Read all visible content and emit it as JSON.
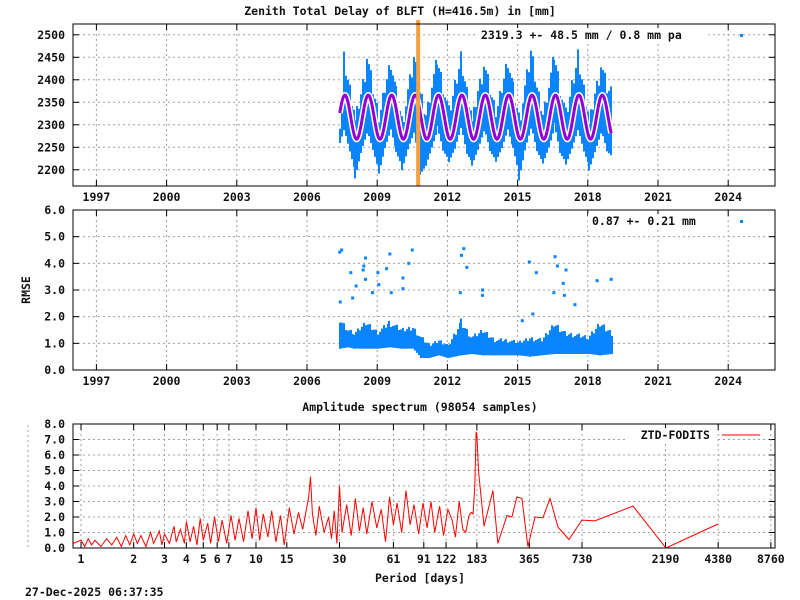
{
  "timestamp": "27-Dec-2025 06:37:35",
  "chart_data": [
    {
      "type": "scatter",
      "title": "Zenith Total Delay of BLFT (H=416.5m) in [mm]",
      "xlabel": "",
      "ylabel": "",
      "xlim": [
        1996,
        2026
      ],
      "ylim": [
        2164,
        2524
      ],
      "xticks": [
        1997,
        2000,
        2003,
        2006,
        2009,
        2012,
        2015,
        2018,
        2021,
        2024
      ],
      "yticks": [
        2200,
        2250,
        2300,
        2350,
        2400,
        2450,
        2500
      ],
      "grid": true,
      "legend": {
        "text": "2319.3 +-  48.5 mm /  0.8 mm pa",
        "placement": "top-right"
      },
      "colors": {
        "data": "#0a84ff",
        "fit": "#9400d3",
        "marker_line": "#f5a040"
      },
      "event_line_year": 2010.75,
      "data_envelope": [
        [
          2007.4,
          2265,
          2330
        ],
        [
          2007.55,
          2290,
          2470
        ],
        [
          2007.8,
          2240,
          2400
        ],
        [
          2008.05,
          2190,
          2340
        ],
        [
          2008.3,
          2245,
          2400
        ],
        [
          2008.55,
          2285,
          2470
        ],
        [
          2008.8,
          2240,
          2390
        ],
        [
          2009.05,
          2195,
          2330
        ],
        [
          2009.3,
          2250,
          2410
        ],
        [
          2009.55,
          2290,
          2465
        ],
        [
          2009.8,
          2235,
          2385
        ],
        [
          2010.05,
          2205,
          2320
        ],
        [
          2010.3,
          2250,
          2400
        ],
        [
          2010.55,
          2285,
          2465
        ],
        [
          2010.8,
          2190,
          2395
        ],
        [
          2011.05,
          2210,
          2340
        ],
        [
          2011.3,
          2250,
          2410
        ],
        [
          2011.55,
          2290,
          2465
        ],
        [
          2011.8,
          2240,
          2400
        ],
        [
          2012.05,
          2220,
          2340
        ],
        [
          2012.3,
          2250,
          2410
        ],
        [
          2012.55,
          2295,
          2470
        ],
        [
          2012.8,
          2235,
          2395
        ],
        [
          2013.05,
          2215,
          2335
        ],
        [
          2013.3,
          2250,
          2405
        ],
        [
          2013.55,
          2290,
          2450
        ],
        [
          2013.8,
          2240,
          2390
        ],
        [
          2014.05,
          2220,
          2340
        ],
        [
          2014.3,
          2250,
          2410
        ],
        [
          2014.55,
          2290,
          2470
        ],
        [
          2014.8,
          2240,
          2395
        ],
        [
          2015.05,
          2185,
          2330
        ],
        [
          2015.3,
          2250,
          2410
        ],
        [
          2015.55,
          2295,
          2480
        ],
        [
          2015.8,
          2240,
          2400
        ],
        [
          2016.05,
          2215,
          2340
        ],
        [
          2016.3,
          2250,
          2410
        ],
        [
          2016.55,
          2295,
          2475
        ],
        [
          2016.8,
          2235,
          2395
        ],
        [
          2017.05,
          2215,
          2335
        ],
        [
          2017.3,
          2250,
          2410
        ],
        [
          2017.55,
          2290,
          2475
        ],
        [
          2017.8,
          2240,
          2400
        ],
        [
          2018.05,
          2205,
          2330
        ],
        [
          2018.3,
          2245,
          2400
        ],
        [
          2018.55,
          2285,
          2450
        ],
        [
          2018.8,
          2240,
          2395
        ],
        [
          2019.0,
          2230,
          2390
        ]
      ],
      "fit": {
        "mean": 2317,
        "amplitude": 49,
        "peak_year_fraction": 0.62,
        "start": 2007.4,
        "end": 2019.0
      }
    },
    {
      "type": "scatter",
      "title": "",
      "xlabel": "",
      "ylabel": "RMSE",
      "xlim": [
        1996,
        2026
      ],
      "ylim": [
        0,
        6
      ],
      "xticks": [
        1997,
        2000,
        2003,
        2006,
        2009,
        2012,
        2015,
        2018,
        2021,
        2024
      ],
      "yticks": [
        "0.0",
        "1.0",
        "2.0",
        "3.0",
        "4.0",
        "5.0",
        "6.0"
      ],
      "grid": true,
      "legend": {
        "text": "0.87 +-  0.21 mm",
        "placement": "top-right"
      },
      "colors": {
        "data": "#0a84ff"
      },
      "data_envelope": [
        [
          2007.4,
          0.8,
          2.0
        ],
        [
          2007.7,
          0.85,
          1.6
        ],
        [
          2008.0,
          0.8,
          1.45
        ],
        [
          2008.5,
          0.8,
          1.9
        ],
        [
          2009.0,
          0.8,
          1.5
        ],
        [
          2009.5,
          0.85,
          1.9
        ],
        [
          2010.0,
          0.8,
          1.6
        ],
        [
          2010.5,
          0.8,
          1.7
        ],
        [
          2010.85,
          0.45,
          1.3
        ],
        [
          2011.2,
          0.45,
          1.0
        ],
        [
          2011.6,
          0.55,
          1.2
        ],
        [
          2012.0,
          0.45,
          1.0
        ],
        [
          2012.55,
          0.55,
          2.0
        ],
        [
          2013.0,
          0.6,
          1.3
        ],
        [
          2013.5,
          0.55,
          1.6
        ],
        [
          2014.0,
          0.55,
          1.2
        ],
        [
          2014.5,
          0.55,
          1.2
        ],
        [
          2015.0,
          0.55,
          1.1
        ],
        [
          2015.5,
          0.5,
          1.3
        ],
        [
          2016.0,
          0.55,
          1.2
        ],
        [
          2016.55,
          0.6,
          1.9
        ],
        [
          2017.0,
          0.6,
          1.5
        ],
        [
          2017.5,
          0.6,
          1.4
        ],
        [
          2018.0,
          0.6,
          1.3
        ],
        [
          2018.5,
          0.55,
          1.9
        ],
        [
          2019.0,
          0.6,
          1.5
        ]
      ],
      "outliers": [
        [
          2007.4,
          4.42
        ],
        [
          2007.48,
          4.5
        ],
        [
          2008.5,
          4.2
        ],
        [
          2008.43,
          3.9
        ],
        [
          2008.4,
          3.75
        ],
        [
          2007.87,
          3.65
        ],
        [
          2009.54,
          4.35
        ],
        [
          2009.4,
          3.8
        ],
        [
          2010.35,
          4.0
        ],
        [
          2010.5,
          4.5
        ],
        [
          2010.1,
          3.45
        ],
        [
          2008.8,
          2.9
        ],
        [
          2008.1,
          3.15
        ],
        [
          2012.6,
          4.3
        ],
        [
          2012.7,
          4.55
        ],
        [
          2012.83,
          3.85
        ],
        [
          2012.55,
          2.9
        ],
        [
          2013.5,
          2.8
        ],
        [
          2015.5,
          4.05
        ],
        [
          2015.8,
          3.65
        ],
        [
          2016.6,
          4.25
        ],
        [
          2016.7,
          3.9
        ],
        [
          2017.07,
          3.75
        ],
        [
          2016.95,
          3.25
        ],
        [
          2016.55,
          2.9
        ],
        [
          2017.0,
          2.8
        ],
        [
          2018.4,
          3.35
        ],
        [
          2019.0,
          3.4
        ],
        [
          2008.5,
          3.4
        ],
        [
          2009.07,
          3.2
        ],
        [
          2007.42,
          2.55
        ],
        [
          2007.95,
          2.7
        ],
        [
          2009.03,
          3.65
        ],
        [
          2010.1,
          3.05
        ],
        [
          2009.6,
          2.9
        ],
        [
          2017.45,
          2.45
        ],
        [
          2015.65,
          2.1
        ],
        [
          2015.2,
          1.85
        ],
        [
          2013.5,
          3.0
        ]
      ]
    },
    {
      "type": "line",
      "title": "Amplitude spectrum (98054 samples)",
      "xlabel": "Period [days]",
      "ylabel": "",
      "xscale": "log",
      "xlim": [
        0.9,
        9250
      ],
      "ylim": [
        0,
        8
      ],
      "xticks": [
        1,
        2,
        3,
        4,
        5,
        6,
        7,
        10,
        15,
        30,
        61,
        91,
        122,
        183,
        365,
        730,
        2190,
        4380,
        8760
      ],
      "yticks": [
        "0.0",
        "1.0",
        "2.0",
        "3.0",
        "4.0",
        "5.0",
        "6.0",
        "7.0",
        "8.0"
      ],
      "grid": true,
      "legend": {
        "text": "ZTD-FODITS",
        "placement": "top-right"
      },
      "series": [
        {
          "name": "ZTD-FODITS",
          "color": "#ff0000",
          "points": [
            [
              0.9,
              0.3
            ],
            [
              1,
              0.5
            ],
            [
              1.05,
              0.1
            ],
            [
              1.1,
              0.6
            ],
            [
              1.15,
              0.2
            ],
            [
              1.2,
              0.5
            ],
            [
              1.3,
              0.1
            ],
            [
              1.4,
              0.6
            ],
            [
              1.5,
              0.2
            ],
            [
              1.6,
              0.7
            ],
            [
              1.7,
              0.1
            ],
            [
              1.8,
              0.8
            ],
            [
              1.9,
              0.2
            ],
            [
              2.0,
              0.9
            ],
            [
              2.1,
              0.3
            ],
            [
              2.2,
              0.8
            ],
            [
              2.35,
              0.1
            ],
            [
              2.5,
              1.0
            ],
            [
              2.6,
              0.3
            ],
            [
              2.8,
              1.1
            ],
            [
              2.9,
              0.2
            ],
            [
              3.0,
              0.9
            ],
            [
              3.2,
              0.3
            ],
            [
              3.4,
              1.4
            ],
            [
              3.5,
              0.4
            ],
            [
              3.7,
              1.2
            ],
            [
              3.9,
              0.3
            ],
            [
              4.0,
              1.7
            ],
            [
              4.2,
              0.4
            ],
            [
              4.4,
              1.4
            ],
            [
              4.6,
              0.2
            ],
            [
              4.8,
              1.9
            ],
            [
              5.0,
              0.5
            ],
            [
              5.3,
              1.6
            ],
            [
              5.5,
              0.3
            ],
            [
              5.8,
              2.0
            ],
            [
              6.1,
              0.4
            ],
            [
              6.4,
              1.8
            ],
            [
              6.8,
              0.3
            ],
            [
              7.2,
              2.1
            ],
            [
              7.6,
              0.5
            ],
            [
              8.0,
              1.9
            ],
            [
              8.5,
              0.4
            ],
            [
              9.0,
              2.4
            ],
            [
              9.5,
              0.6
            ],
            [
              10,
              2.6
            ],
            [
              10.5,
              0.5
            ],
            [
              11,
              2.2
            ],
            [
              11.7,
              0.7
            ],
            [
              12.3,
              2.4
            ],
            [
              13,
              0.4
            ],
            [
              13.8,
              2.1
            ],
            [
              14.5,
              0.2
            ],
            [
              15.5,
              2.6
            ],
            [
              16.5,
              0.9
            ],
            [
              17.5,
              2.3
            ],
            [
              18.5,
              1.2
            ],
            [
              19.5,
              2.6
            ],
            [
              20,
              3.3
            ],
            [
              20.5,
              4.6
            ],
            [
              21,
              2.2
            ],
            [
              22,
              0.8
            ],
            [
              23,
              2.7
            ],
            [
              24.5,
              1.0
            ],
            [
              26,
              2.0
            ],
            [
              27,
              0.6
            ],
            [
              28,
              2.4
            ],
            [
              29,
              0.3
            ],
            [
              30,
              4.0
            ],
            [
              31,
              1.0
            ],
            [
              33,
              2.8
            ],
            [
              35,
              0.8
            ],
            [
              37,
              3.2
            ],
            [
              39,
              1.1
            ],
            [
              41,
              2.6
            ],
            [
              43,
              0.9
            ],
            [
              46,
              3.0
            ],
            [
              49,
              1.3
            ],
            [
              52,
              2.5
            ],
            [
              55,
              0.4
            ],
            [
              58,
              3.3
            ],
            [
              61,
              1.5
            ],
            [
              64,
              2.9
            ],
            [
              68,
              1.0
            ],
            [
              72,
              3.7
            ],
            [
              76,
              1.5
            ],
            [
              80,
              2.8
            ],
            [
              85,
              0.9
            ],
            [
              90,
              2.9
            ],
            [
              95,
              1.3
            ],
            [
              100,
              3.0
            ],
            [
              105,
              1.0
            ],
            [
              112,
              2.7
            ],
            [
              118,
              0.8
            ],
            [
              125,
              2.5
            ],
            [
              132,
              1.8
            ],
            [
              138,
              0.7
            ],
            [
              145,
              3.0
            ],
            [
              152,
              1.2
            ],
            [
              158,
              1.0
            ],
            [
              165,
              2.1
            ],
            [
              170,
              2.3
            ],
            [
              174,
              2.2
            ],
            [
              178,
              4.0
            ],
            [
              181,
              7.5
            ],
            [
              183,
              7.3
            ],
            [
              187,
              5.0
            ],
            [
              201,
              1.4
            ],
            [
              226,
              3.7
            ],
            [
              241,
              0.3
            ],
            [
              272,
              2.1
            ],
            [
              290,
              2.0
            ],
            [
              310,
              3.3
            ],
            [
              331,
              3.2
            ],
            [
              358,
              0.1
            ],
            [
              393,
              2.0
            ],
            [
              436,
              1.95
            ],
            [
              479,
              3.2
            ],
            [
              532,
              1.35
            ],
            [
              615,
              0.55
            ],
            [
              729,
              1.8
            ],
            [
              865,
              1.75
            ],
            [
              1427,
              2.7
            ],
            [
              2203,
              0.0
            ],
            [
              4368,
              1.55
            ]
          ]
        }
      ]
    }
  ]
}
